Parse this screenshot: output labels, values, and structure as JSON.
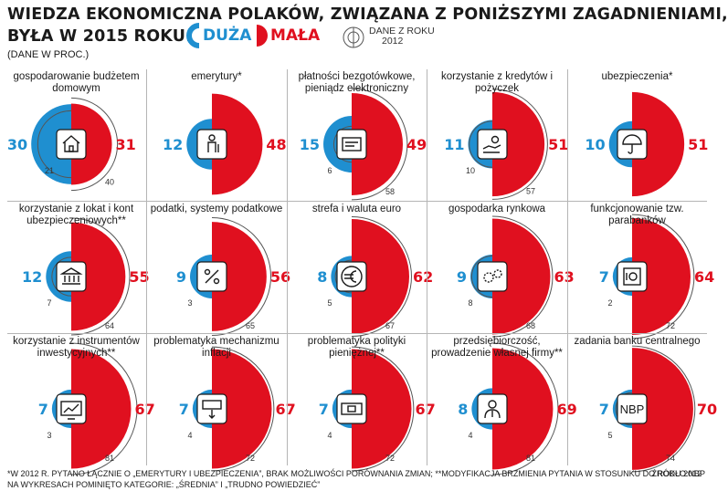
{
  "header": {
    "title_line1": "WIEDZA EKONOMICZNA POLAKÓW, ZWIĄZANA Z PONIŻSZYMI ZAGADNIENIAMI,",
    "title_line2": "BYŁA W 2015 ROKU:",
    "subtitle": "(DANE W PROC.)",
    "legend": {
      "duza": "DUŻA",
      "mala": "MAŁA",
      "prev_line1": "DANE Z ROKU",
      "prev_line2": "2012"
    },
    "colors": {
      "duza": "#1f8fd0",
      "mala": "#e0101f"
    }
  },
  "chart_data": [
    {
      "type": "pie",
      "title": "gospodarowanie budżetem domowym",
      "icon": "house-icon",
      "duza": 30,
      "mala": 31,
      "duza_2012": 21,
      "mala_2012": 40
    },
    {
      "type": "pie",
      "title": "emerytury*",
      "icon": "elderly-person-icon",
      "duza": 12,
      "mala": 48,
      "duza_2012": null,
      "mala_2012": null
    },
    {
      "type": "pie",
      "title": "płatności bezgotówkowe, pieniądz elektroniczny",
      "icon": "payment-card-icon",
      "duza": 15,
      "mala": 49,
      "duza_2012": 6,
      "mala_2012": 58
    },
    {
      "type": "pie",
      "title": "korzystanie z kredytów i pożyczek",
      "icon": "hand-money-icon",
      "duza": 11,
      "mala": 51,
      "duza_2012": 10,
      "mala_2012": 57
    },
    {
      "type": "pie",
      "title": "ubezpieczenia*",
      "icon": "umbrella-icon",
      "duza": 10,
      "mala": 51,
      "duza_2012": null,
      "mala_2012": null
    },
    {
      "type": "pie",
      "title": "korzystanie z lokat i kont ubezpieczeniowych**",
      "icon": "bank-building-icon",
      "duza": 12,
      "mala": 55,
      "duza_2012": 7,
      "mala_2012": 64
    },
    {
      "type": "pie",
      "title": "podatki, systemy podatkowe",
      "icon": "percent-icon",
      "duza": 9,
      "mala": 56,
      "duza_2012": 3,
      "mala_2012": 65
    },
    {
      "type": "pie",
      "title": "strefa i waluta euro",
      "icon": "euro-icon",
      "duza": 8,
      "mala": 62,
      "duza_2012": 5,
      "mala_2012": 67
    },
    {
      "type": "pie",
      "title": "gospodarka rynkowa",
      "icon": "gears-icon",
      "duza": 9,
      "mala": 63,
      "duza_2012": 8,
      "mala_2012": 68
    },
    {
      "type": "pie",
      "title": "funkcjonowanie tzw. parabanków",
      "icon": "safe-icon",
      "duza": 7,
      "mala": 64,
      "duza_2012": 2,
      "mala_2012": 72
    },
    {
      "type": "pie",
      "title": "korzystanie z instrumentów inwestycyjnych**",
      "icon": "chart-screen-icon",
      "duza": 7,
      "mala": 67,
      "duza_2012": 3,
      "mala_2012": 81
    },
    {
      "type": "pie",
      "title": "problematyka mechanizmu inflacji",
      "icon": "banknote-down-icon",
      "duza": 7,
      "mala": 67,
      "duza_2012": 4,
      "mala_2012": 72
    },
    {
      "type": "pie",
      "title": "problematyka polityki pieniężnej**",
      "icon": "banknote-icon",
      "duza": 7,
      "mala": 67,
      "duza_2012": 4,
      "mala_2012": 72
    },
    {
      "type": "pie",
      "title": "przedsiębiorczość, prowadzenie własnej firmy**",
      "icon": "businessman-icon",
      "duza": 8,
      "mala": 69,
      "duza_2012": 4,
      "mala_2012": 81
    },
    {
      "type": "pie",
      "title": "zadania banku centralnego",
      "icon": "nbp-icon",
      "icon_text": "NBP",
      "duza": 7,
      "mala": 70,
      "duza_2012": 5,
      "mala_2012": 74
    }
  ],
  "footer": {
    "footnote1": "*W 2012 R. PYTANO ŁĄCZNIE O „EMERYTURY I UBEZPIECZENIA”, BRAK MOŻLIWOŚCI PORÓWNANIA ZMIAN; **MODYFIKACJA BRZMIENIA PYTANIA W STOSUNKU DO ROKU 2012",
    "footnote2": "NA WYKRESACH POMINIĘTO KATEGORIE: „ŚREDNIA” I „TRUDNO POWIEDZIEĆ”",
    "source": "ŹRÓDŁO:NBP"
  }
}
